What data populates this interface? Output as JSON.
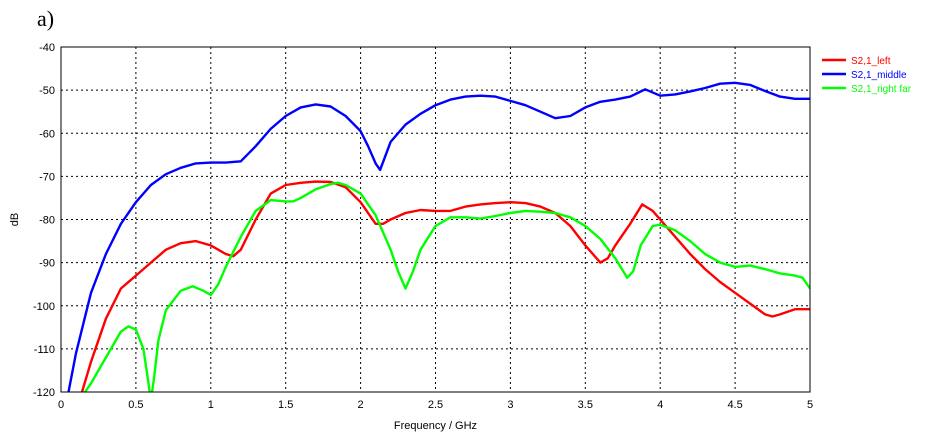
{
  "panel_label": "a)",
  "chart_data": {
    "type": "line",
    "title": "",
    "xlabel": "Frequency / GHz",
    "ylabel": "dB",
    "xlim": [
      0,
      5
    ],
    "ylim": [
      -120,
      -40
    ],
    "xticks": [
      0,
      0.5,
      1,
      1.5,
      2,
      2.5,
      3,
      3.5,
      4,
      4.5,
      5
    ],
    "xtick_labels": [
      "0",
      "0.5",
      "1",
      "1.5",
      "2",
      "2.5",
      "3",
      "3.5",
      "4",
      "4.5",
      "5"
    ],
    "yticks": [
      -40,
      -50,
      -60,
      -70,
      -80,
      -90,
      -100,
      -110,
      -120
    ],
    "ytick_labels": [
      "-40",
      "-50",
      "-60",
      "-70",
      "-80",
      "-90",
      "-100",
      "-110",
      "-120"
    ],
    "grid": true,
    "legend_position": "right",
    "series": [
      {
        "name": "S2,1_left",
        "color": "#ff0000",
        "x": [
          0.14,
          0.2,
          0.3,
          0.4,
          0.5,
          0.6,
          0.7,
          0.8,
          0.9,
          1.0,
          1.1,
          1.15,
          1.2,
          1.3,
          1.4,
          1.5,
          1.6,
          1.7,
          1.8,
          1.9,
          2.0,
          2.1,
          2.15,
          2.2,
          2.3,
          2.4,
          2.5,
          2.6,
          2.7,
          2.8,
          2.9,
          3.0,
          3.1,
          3.2,
          3.3,
          3.4,
          3.5,
          3.6,
          3.65,
          3.7,
          3.8,
          3.88,
          3.95,
          4.0,
          4.1,
          4.2,
          4.3,
          4.4,
          4.5,
          4.6,
          4.7,
          4.75,
          4.8,
          4.9,
          5.0
        ],
        "y": [
          -120,
          -113,
          -103,
          -96,
          -93,
          -90,
          -87,
          -85.5,
          -85,
          -86,
          -88,
          -88.5,
          -87,
          -80,
          -74,
          -72,
          -71.5,
          -71.2,
          -71.3,
          -72.5,
          -76,
          -81,
          -81,
          -80,
          -78.5,
          -77.8,
          -78,
          -78,
          -77,
          -76.5,
          -76.2,
          -76,
          -76.2,
          -77,
          -78.5,
          -81.5,
          -86,
          -90,
          -89,
          -86,
          -81,
          -76.5,
          -78,
          -80,
          -84,
          -88,
          -91.5,
          -94.5,
          -97,
          -99.5,
          -102,
          -102.5,
          -102,
          -100.8,
          -100.8
        ]
      },
      {
        "name": "S2,1_middle",
        "color": "#0000ff",
        "x": [
          0.05,
          0.1,
          0.2,
          0.3,
          0.4,
          0.5,
          0.6,
          0.7,
          0.8,
          0.9,
          1.0,
          1.1,
          1.2,
          1.3,
          1.4,
          1.5,
          1.6,
          1.7,
          1.8,
          1.9,
          2.0,
          2.05,
          2.1,
          2.13,
          2.2,
          2.3,
          2.4,
          2.5,
          2.6,
          2.7,
          2.8,
          2.9,
          3.0,
          3.1,
          3.2,
          3.3,
          3.4,
          3.5,
          3.6,
          3.7,
          3.8,
          3.9,
          4.0,
          4.1,
          4.2,
          4.3,
          4.4,
          4.5,
          4.6,
          4.7,
          4.8,
          4.9,
          5.0
        ],
        "y": [
          -120,
          -111,
          -97,
          -88,
          -81,
          -76,
          -72,
          -69.5,
          -68,
          -67,
          -66.8,
          -66.8,
          -66.5,
          -63,
          -59,
          -56,
          -54,
          -53.3,
          -53.8,
          -56,
          -59.5,
          -63,
          -67,
          -68.5,
          -62,
          -58,
          -55.5,
          -53.5,
          -52.2,
          -51.5,
          -51.3,
          -51.5,
          -52.5,
          -53.5,
          -55,
          -56.5,
          -56,
          -54,
          -52.7,
          -52.2,
          -51.5,
          -49.8,
          -51.3,
          -51,
          -50.3,
          -49.5,
          -48.5,
          -48.3,
          -48.8,
          -50.2,
          -51.5,
          -52,
          -52
        ]
      },
      {
        "name": "S2,1_right far",
        "color": "#00ff00",
        "x": [
          0.16,
          0.2,
          0.3,
          0.4,
          0.45,
          0.5,
          0.55,
          0.58,
          0.6,
          0.62,
          0.65,
          0.7,
          0.8,
          0.88,
          0.95,
          1.0,
          1.05,
          1.1,
          1.2,
          1.3,
          1.4,
          1.5,
          1.55,
          1.6,
          1.7,
          1.8,
          1.85,
          1.9,
          2.0,
          2.1,
          2.2,
          2.25,
          2.3,
          2.35,
          2.4,
          2.5,
          2.6,
          2.7,
          2.8,
          2.9,
          3.0,
          3.1,
          3.2,
          3.3,
          3.4,
          3.5,
          3.6,
          3.7,
          3.78,
          3.82,
          3.87,
          3.95,
          4.0,
          4.1,
          4.2,
          4.3,
          4.4,
          4.5,
          4.6,
          4.7,
          4.8,
          4.9,
          4.95,
          5.0
        ],
        "y": [
          -120,
          -118,
          -112,
          -106,
          -104.8,
          -105.5,
          -110,
          -117,
          -122,
          -117,
          -108,
          -101,
          -96.5,
          -95.5,
          -96.5,
          -97.5,
          -95,
          -91,
          -84,
          -78,
          -75.5,
          -75.8,
          -75.8,
          -75,
          -73,
          -71.8,
          -71.5,
          -72,
          -74,
          -79,
          -87,
          -92,
          -96,
          -92,
          -87,
          -81.5,
          -79.5,
          -79.5,
          -79.8,
          -79.2,
          -78.5,
          -78,
          -78.2,
          -78.5,
          -79.5,
          -81.5,
          -84.5,
          -89,
          -93.5,
          -92,
          -86,
          -81.5,
          -81.2,
          -82.5,
          -85,
          -88,
          -90,
          -91,
          -90.7,
          -91.5,
          -92.5,
          -93,
          -93.5,
          -96
        ]
      }
    ]
  }
}
